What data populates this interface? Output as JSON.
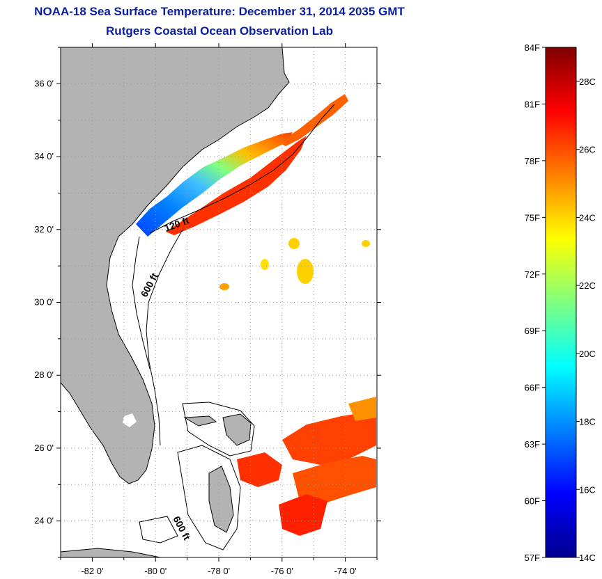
{
  "title": "NOAA-18 Sea Surface Temperature:  December 31, 2014 2035 GMT",
  "subtitle": "Rutgers Coastal Ocean Observation Lab",
  "map": {
    "lon_range": [
      -83,
      -73
    ],
    "lat_range": [
      23,
      37
    ],
    "lat_ticks": [
      {
        "value": 36,
        "label": "36 0'"
      },
      {
        "value": 34,
        "label": "34 0'"
      },
      {
        "value": 32,
        "label": "32 0'"
      },
      {
        "value": 30,
        "label": "30 0'"
      },
      {
        "value": 28,
        "label": "28 0'"
      },
      {
        "value": 26,
        "label": "26 0'"
      },
      {
        "value": 24,
        "label": "24 0'"
      }
    ],
    "lon_ticks": [
      {
        "value": -82,
        "label": "-82 0'"
      },
      {
        "value": -80,
        "label": "-80 0'"
      },
      {
        "value": -78,
        "label": "-78 0'"
      },
      {
        "value": -76,
        "label": "-76 0'"
      },
      {
        "value": -74,
        "label": "-74 0'"
      }
    ],
    "contour_labels": [
      "120 ft",
      "600 ft",
      "600 ft"
    ],
    "land_color": "#b3b3b3"
  },
  "colorbar": {
    "f_labels": [
      "84F",
      "81F",
      "78F",
      "75F",
      "72F",
      "69F",
      "66F",
      "63F",
      "60F",
      "57F"
    ],
    "c_labels": [
      "28C",
      "26C",
      "24C",
      "22C",
      "20C",
      "18C",
      "16C",
      "14C"
    ],
    "colors": [
      "#00008f",
      "#0000ff",
      "#0080ff",
      "#00ffff",
      "#80ff80",
      "#ffff00",
      "#ff8000",
      "#ff0000",
      "#800000"
    ]
  }
}
